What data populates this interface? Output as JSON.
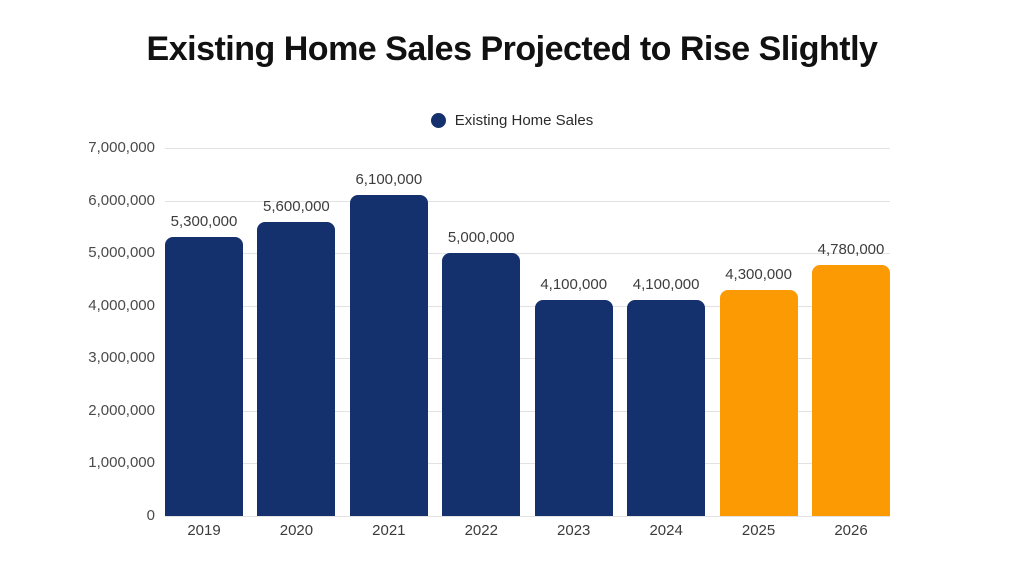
{
  "chart_data": {
    "type": "bar",
    "title": "Existing Home Sales Projected to Rise Slightly",
    "xlabel": "",
    "ylabel": "",
    "categories": [
      "2019",
      "2020",
      "2021",
      "2022",
      "2023",
      "2024",
      "2025",
      "2026"
    ],
    "series": [
      {
        "name": "Existing Home Sales",
        "values": [
          5300000,
          5600000,
          6100000,
          5000000,
          4100000,
          4100000,
          4300000,
          4780000
        ]
      }
    ],
    "data_labels": [
      "5,300,000",
      "5,600,000",
      "6,100,000",
      "5,000,000",
      "4,100,000",
      "4,100,000",
      "4,300,000",
      "4,780,000"
    ],
    "ytick_labels": [
      "7,000,000",
      "6,000,000",
      "5,000,000",
      "4,000,000",
      "3,000,000",
      "2,000,000",
      "1,000,000",
      "0"
    ],
    "ylim": [
      0,
      7000000
    ],
    "ytick_step": 1000000,
    "grid": "horizontal",
    "legend_position": "top-center",
    "bar_colors": [
      "#14316e",
      "#14316e",
      "#14316e",
      "#14316e",
      "#14316e",
      "#14316e",
      "#fc9a03",
      "#fc9a03"
    ],
    "colors": {
      "historical_bar": "#14316e",
      "projected_bar": "#fc9a03",
      "legend_marker": "#14316e",
      "gridline": "#e2e2e2",
      "title_text": "#111111",
      "axis_text": "#4a4a4a",
      "data_label_text": "#3d3d3d"
    }
  }
}
